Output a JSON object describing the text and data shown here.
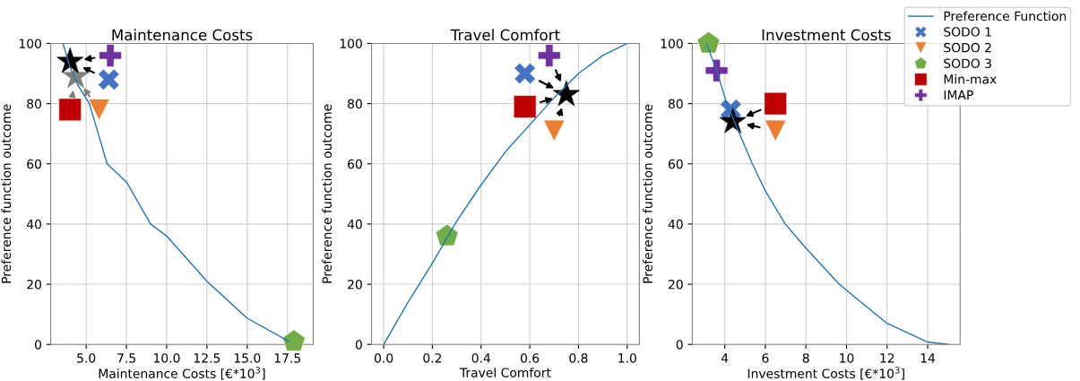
{
  "chart_data": [
    {
      "type": "scatter",
      "title": "Maintenance Costs",
      "xlabel": "Maintenance Costs [€*10$^{3}$]",
      "ylabel": "Preference function outcome",
      "xlim": [
        2.8,
        19.1
      ],
      "ylim": [
        0,
        100
      ],
      "xticks": [
        {
          "value": 5,
          "label": "5.0"
        },
        {
          "value": 7.5,
          "label": "7.5"
        },
        {
          "value": 10,
          "label": "10.0"
        },
        {
          "value": 12.5,
          "label": "12.5"
        },
        {
          "value": 15,
          "label": "15.0"
        },
        {
          "value": 17.5,
          "label": "17.5"
        }
      ],
      "yticks": [
        0,
        20,
        40,
        60,
        80,
        100
      ],
      "grid": true,
      "legend": false,
      "series": [
        {
          "type": "line",
          "color": "#1f77b4",
          "marker": "none",
          "x": [
            3.56,
            4.0,
            4.5,
            5.2,
            6.3,
            7.5,
            9.0,
            10.0,
            12.5,
            15.0,
            17.5,
            17.6
          ],
          "values": [
            100,
            92,
            86,
            80,
            60,
            54,
            40,
            36,
            21,
            8.7,
            1.3,
            1
          ]
        },
        {
          "color": "#4472c4",
          "marker": "x",
          "x": [
            6.4
          ],
          "values": [
            88
          ]
        },
        {
          "color": "#ed7d31",
          "marker": "triangle_down",
          "x": [
            5.8
          ],
          "values": [
            78
          ]
        },
        {
          "color": "#70ad47",
          "x": [
            17.9
          ],
          "values": [
            1
          ]
        },
        {
          "color": "#c00000",
          "marker": "square",
          "x": [
            4.0
          ],
          "values": [
            78
          ]
        },
        {
          "color": "#7030a0",
          "marker": "plus",
          "x": [
            6.5
          ],
          "values": [
            96
          ]
        },
        {
          "color": "#808080",
          "marker": "star",
          "x": [
            4.35
          ],
          "values": [
            89
          ]
        },
        {
          "color": "#000000",
          "marker": "star",
          "x": [
            4.0
          ],
          "values": [
            94
          ]
        }
      ]
    },
    {
      "type": "scatter",
      "title": "Travel Comfort",
      "xlabel": "Travel Comfort",
      "ylabel": "Preference function outcome",
      "xlim": [
        -0.05,
        1.05
      ],
      "ylim": [
        0,
        100
      ],
      "xticks": [
        {
          "value": 0,
          "label": "0.0"
        },
        {
          "value": 0.2,
          "label": "0.2"
        },
        {
          "value": 0.4,
          "label": "0.4"
        },
        {
          "value": 0.6,
          "label": "0.6"
        },
        {
          "value": 0.8,
          "label": "0.8"
        },
        {
          "value": 1,
          "label": "1.0"
        }
      ],
      "yticks": [
        0,
        20,
        40,
        60,
        80,
        100
      ],
      "grid": true,
      "legend": false,
      "series": [
        {
          "type": "line",
          "color": "#1f77b4",
          "marker": "none",
          "x": [
            0,
            0.1,
            0.2,
            0.3,
            0.4,
            0.5,
            0.6,
            0.7,
            0.8,
            0.9,
            1.0
          ],
          "values": [
            0,
            14,
            27,
            41,
            53,
            64,
            73,
            82,
            90,
            96,
            100
          ]
        },
        {
          "color": "#4472c4",
          "marker": "x",
          "x": [
            0.58
          ],
          "values": [
            90
          ]
        },
        {
          "color": "#ed7d31",
          "marker": "triangle_down",
          "x": [
            0.7
          ],
          "values": [
            71
          ]
        },
        {
          "color": "#70ad47",
          "x": [
            0.26
          ],
          "values": [
            36
          ]
        },
        {
          "color": "#c00000",
          "marker": "square",
          "x": [
            0.58
          ],
          "values": [
            79
          ]
        },
        {
          "color": "#7030a0",
          "marker": "plus",
          "x": [
            0.68
          ],
          "values": [
            96
          ]
        },
        {
          "color": "#000000",
          "marker": "star",
          "x": [
            0.75
          ],
          "values": [
            83
          ]
        }
      ]
    },
    {
      "type": "scatter",
      "title": "Investment Costs",
      "xlabel": "Investment Costs [€*10$^{3}$]",
      "ylabel": "Preference function outcome",
      "xlim": [
        2.4,
        15.6
      ],
      "ylim": [
        0,
        100
      ],
      "xticks": [
        4,
        6,
        8,
        10,
        12,
        14
      ],
      "yticks": [
        0,
        20,
        40,
        60,
        80,
        100
      ],
      "grid": true,
      "legend": "top right",
      "series": [
        {
          "type": "line",
          "name": "Preference Function",
          "color": "#1f77b4",
          "marker": "none",
          "x": [
            3.1,
            3.6,
            4.1,
            5.36,
            6.0,
            6.98,
            8.0,
            9.64,
            10.0,
            12.0,
            14.0,
            15.0
          ],
          "values": [
            100,
            91,
            80,
            60,
            51,
            40,
            32,
            20,
            18,
            7,
            0.8,
            0
          ]
        },
        {
          "name": "SODO 1",
          "color": "#4472c4",
          "marker": "x",
          "x": [
            4.3
          ],
          "values": [
            78
          ]
        },
        {
          "name": "SODO 2",
          "color": "#ed7d31",
          "marker": "triangle_down",
          "x": [
            6.5
          ],
          "values": [
            71
          ]
        },
        {
          "name": "SODO 3",
          "color": "#70ad47",
          "x": [
            3.2
          ],
          "values": [
            100
          ]
        },
        {
          "name": "Min-max",
          "color": "#c00000",
          "marker": "square",
          "x": [
            6.5
          ],
          "values": [
            80
          ]
        },
        {
          "name": "IMAP",
          "color": "#7030a0",
          "marker": "plus",
          "x": [
            3.6
          ],
          "values": [
            91
          ]
        },
        {
          "color": "#000000",
          "marker": "star",
          "x": [
            4.4
          ],
          "values": [
            74
          ]
        }
      ]
    }
  ]
}
